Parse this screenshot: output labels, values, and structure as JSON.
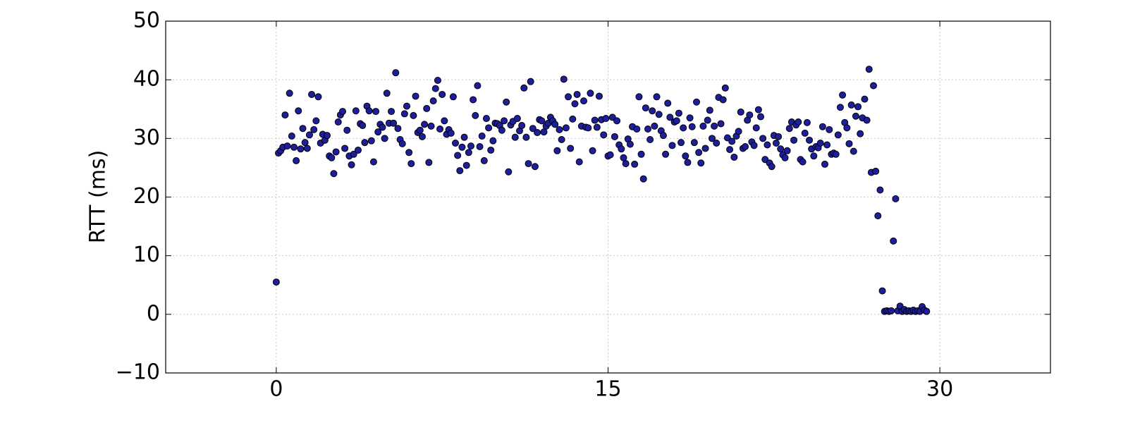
{
  "chart_data": {
    "type": "scatter",
    "ylabel": "RTT (ms)",
    "color": "#1e1e9c",
    "grid": true,
    "xlim": [
      -5,
      35
    ],
    "xticks": [
      0,
      15,
      30
    ],
    "ylim": [
      -10,
      50
    ],
    "yticks": [
      {
        "value": -10,
        "label": "−10"
      },
      0,
      10,
      20,
      30,
      40,
      50
    ],
    "x": [
      0,
      0.1,
      0.2,
      0.3,
      0.4,
      0.5,
      0.6,
      0.7,
      0.8,
      0.9,
      1.0,
      1.1,
      1.2,
      1.3,
      1.4,
      1.5,
      1.6,
      1.7,
      1.8,
      1.9,
      2.0,
      2.1,
      2.2,
      2.3,
      2.4,
      2.5,
      2.6,
      2.7,
      2.8,
      2.9,
      3.0,
      3.1,
      3.2,
      3.3,
      3.4,
      3.5,
      3.6,
      3.7,
      3.8,
      3.9,
      4.0,
      4.1,
      4.2,
      4.3,
      4.4,
      4.5,
      4.6,
      4.7,
      4.8,
      4.9,
      5.0,
      5.1,
      5.2,
      5.3,
      5.4,
      5.5,
      5.6,
      5.7,
      5.8,
      5.9,
      6.0,
      6.1,
      6.2,
      6.3,
      6.4,
      6.5,
      6.6,
      6.7,
      6.8,
      6.9,
      7.0,
      7.1,
      7.2,
      7.3,
      7.4,
      7.5,
      7.6,
      7.7,
      7.8,
      7.9,
      8.0,
      8.1,
      8.2,
      8.3,
      8.4,
      8.5,
      8.6,
      8.7,
      8.8,
      8.9,
      9.0,
      9.1,
      9.2,
      9.3,
      9.4,
      9.5,
      9.6,
      9.7,
      9.8,
      9.9,
      10.0,
      10.1,
      10.2,
      10.3,
      10.4,
      10.5,
      10.6,
      10.7,
      10.8,
      10.9,
      11.0,
      11.1,
      11.2,
      11.3,
      11.4,
      11.5,
      11.6,
      11.7,
      11.8,
      11.9,
      12.0,
      12.1,
      12.2,
      12.3,
      12.4,
      12.5,
      12.6,
      12.7,
      12.8,
      12.9,
      13.0,
      13.1,
      13.2,
      13.3,
      13.4,
      13.5,
      13.6,
      13.7,
      13.8,
      13.9,
      14.0,
      14.1,
      14.2,
      14.3,
      14.4,
      14.5,
      14.6,
      14.7,
      14.8,
      14.9,
      15.0,
      15.1,
      15.2,
      15.3,
      15.4,
      15.5,
      15.6,
      15.7,
      15.8,
      15.9,
      16.0,
      16.1,
      16.2,
      16.3,
      16.4,
      16.5,
      16.6,
      16.7,
      16.8,
      16.9,
      17.0,
      17.1,
      17.2,
      17.3,
      17.4,
      17.5,
      17.6,
      17.7,
      17.8,
      17.9,
      18.0,
      18.1,
      18.2,
      18.3,
      18.4,
      18.5,
      18.6,
      18.7,
      18.8,
      18.9,
      19.0,
      19.1,
      19.2,
      19.3,
      19.4,
      19.5,
      19.6,
      19.7,
      19.8,
      19.9,
      20.0,
      20.1,
      20.2,
      20.3,
      20.4,
      20.5,
      20.6,
      20.7,
      20.8,
      20.9,
      21.0,
      21.1,
      21.2,
      21.3,
      21.4,
      21.5,
      21.6,
      21.7,
      21.8,
      21.9,
      22.0,
      22.1,
      22.2,
      22.3,
      22.4,
      22.5,
      22.6,
      22.7,
      22.8,
      22.9,
      23.0,
      23.1,
      23.2,
      23.3,
      23.4,
      23.5,
      23.6,
      23.7,
      23.8,
      23.9,
      24.0,
      24.1,
      24.2,
      24.3,
      24.4,
      24.5,
      24.6,
      24.7,
      24.8,
      24.9,
      25.0,
      25.1,
      25.2,
      25.3,
      25.4,
      25.5,
      25.6,
      25.7,
      25.8,
      25.9,
      26.0,
      26.1,
      26.2,
      26.3,
      26.4,
      26.5,
      26.6,
      26.7,
      26.8,
      26.9,
      27.0,
      27.1,
      27.2,
      27.3,
      27.4,
      27.5,
      27.6,
      27.7,
      27.8,
      27.9,
      28.0,
      28.1,
      28.2,
      28.3,
      28.4,
      28.5,
      28.6,
      28.7,
      28.8,
      28.9,
      29.0,
      29.1,
      29.2,
      29.3,
      29.4
    ],
    "y": [
      5.5,
      27.5,
      27.9,
      28.5,
      34,
      28.7,
      37.7,
      30.4,
      28.5,
      26.2,
      34.7,
      28.2,
      31.7,
      29.3,
      28.3,
      30.6,
      37.5,
      31.5,
      33,
      37.1,
      29.2,
      30.7,
      29.7,
      30.5,
      27,
      26.7,
      24,
      27.7,
      32.8,
      34,
      34.6,
      28.3,
      31.4,
      27,
      25.5,
      27.3,
      34.7,
      28,
      32.5,
      32.2,
      29.3,
      35.5,
      34.7,
      29.6,
      26,
      34.6,
      31.1,
      32.4,
      31.9,
      30,
      37.7,
      32.6,
      34.6,
      32.6,
      41.2,
      31.7,
      29.8,
      29.1,
      34.2,
      35.5,
      27.6,
      25.7,
      33.9,
      37.2,
      31,
      31.4,
      30.3,
      32.4,
      35.1,
      25.9,
      32.1,
      36.4,
      38.5,
      39.9,
      31.6,
      37.5,
      33,
      30.7,
      31.5,
      30.9,
      37.1,
      29.2,
      27.1,
      24.5,
      28.5,
      30.2,
      25.4,
      27.6,
      28.7,
      36.6,
      33.9,
      39,
      28.6,
      30.4,
      26.2,
      33.4,
      31.8,
      28,
      29.6,
      32.6,
      32.5,
      32.2,
      31.4,
      33,
      36.2,
      24.3,
      32.3,
      32.9,
      30.2,
      33.4,
      31.3,
      32.2,
      38.6,
      30.2,
      25.7,
      39.7,
      31.7,
      25.2,
      31,
      33.2,
      33,
      31.1,
      32.1,
      32.6,
      33.6,
      33,
      32.4,
      27.9,
      31.5,
      29.8,
      40.1,
      31.8,
      37.1,
      28.3,
      33.3,
      35.9,
      37.5,
      26,
      32.1,
      36.4,
      31.9,
      31.8,
      37.7,
      27.9,
      33.1,
      31.9,
      37.2,
      33.2,
      30.6,
      33.4,
      27,
      27.2,
      33.6,
      30.3,
      33,
      28.9,
      28.2,
      26.7,
      25.7,
      29.9,
      29,
      32,
      25.6,
      31.6,
      37.1,
      27.3,
      23.1,
      35.2,
      31.6,
      29.8,
      34.7,
      32.1,
      37.1,
      34.1,
      31.3,
      30.5,
      27.3,
      36,
      33.6,
      28.8,
      32.8,
      33,
      34.3,
      29.3,
      31.8,
      27,
      25.9,
      33.5,
      32,
      29.3,
      36.2,
      27.6,
      25.8,
      32.1,
      28.3,
      33.1,
      34.8,
      30,
      32.1,
      29.2,
      37,
      32.5,
      36.6,
      38.6,
      30.1,
      28.1,
      29.5,
      26.8,
      30.4,
      31.2,
      34.5,
      28.3,
      28.6,
      33.1,
      34,
      29.4,
      28.8,
      31.8,
      34.9,
      33.7,
      30,
      26.4,
      28.9,
      25.8,
      25.2,
      30.5,
      29.2,
      30.3,
      28.2,
      27.2,
      26.7,
      27.9,
      31.7,
      32.8,
      29.7,
      32.3,
      32.8,
      26.4,
      26,
      30.9,
      32.7,
      29.7,
      28.2,
      27,
      28.6,
      28.4,
      29.2,
      32,
      25.6,
      28.9,
      31.5,
      27.3,
      27.5,
      27.3,
      30.6,
      35.3,
      37.4,
      32.7,
      31.8,
      29.1,
      35.7,
      27.8,
      33.8,
      35.4,
      30.8,
      33.5,
      36.7,
      33.1,
      41.8,
      24.2,
      39,
      24.4,
      16.8,
      21.2,
      4,
      0.5,
      0.6,
      0.5,
      0.6,
      12.5,
      19.7,
      0.6,
      1.4,
      0.5,
      0.8,
      0.5,
      0.6,
      0.5,
      0.7,
      0.5,
      0.6,
      0.5,
      1.3,
      0.7,
      0.5
    ]
  }
}
